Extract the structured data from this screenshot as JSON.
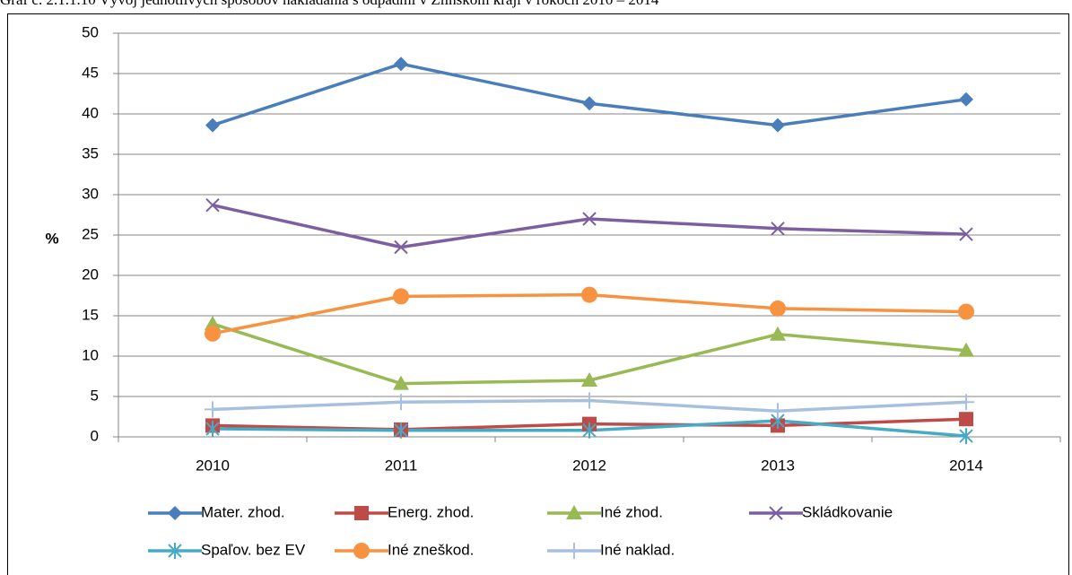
{
  "chart_data": {
    "type": "line",
    "title": "Graf č. 2.1.1.10 Vývoj jednotlivých spôsobov nakladania s odpadmi v Zlínskom kraji v rokoch 2010 – 2014",
    "y_label": "%",
    "categories": [
      "2010",
      "2011",
      "2012",
      "2013",
      "2014"
    ],
    "ylim": [
      0,
      50
    ],
    "yticks": [
      0,
      5,
      10,
      15,
      20,
      25,
      30,
      35,
      40,
      45,
      50
    ],
    "grid": true,
    "series": [
      {
        "name": "Mater. zhod.",
        "color": "#4a7ebb",
        "marker": "diamond",
        "values": [
          38.6,
          46.2,
          41.3,
          38.6,
          41.8
        ]
      },
      {
        "name": "Energ. zhod.",
        "color": "#be4b48",
        "marker": "square",
        "values": [
          1.4,
          0.9,
          1.6,
          1.4,
          2.2
        ]
      },
      {
        "name": "Iné zhod.",
        "color": "#98b954",
        "marker": "triangle",
        "values": [
          14.0,
          6.6,
          7.0,
          12.7,
          10.7
        ]
      },
      {
        "name": "Skládkovanie",
        "color": "#7d5fa0",
        "marker": "x",
        "values": [
          28.7,
          23.5,
          27.0,
          25.8,
          25.1
        ]
      },
      {
        "name": "Spaľov. bez EV",
        "color": "#46aac5",
        "marker": "star",
        "values": [
          1.0,
          0.8,
          0.8,
          2.0,
          0.1
        ]
      },
      {
        "name": "Iné zneškod.",
        "color": "#f69240",
        "marker": "circle",
        "values": [
          12.8,
          17.4,
          17.6,
          15.9,
          15.5
        ]
      },
      {
        "name": "Iné naklad.",
        "color": "#a7c0de",
        "marker": "plus",
        "values": [
          3.4,
          4.3,
          4.5,
          3.2,
          4.3
        ]
      }
    ]
  }
}
